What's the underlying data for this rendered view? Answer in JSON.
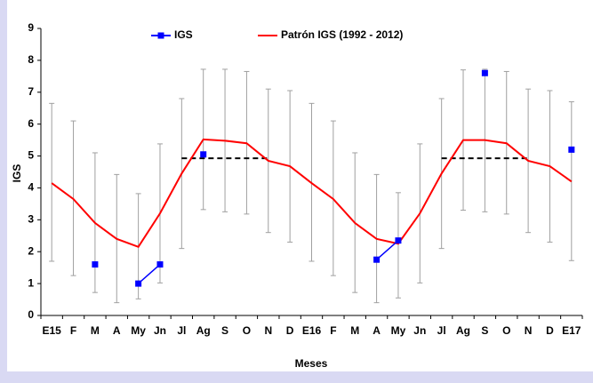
{
  "chart_data": {
    "type": "line",
    "y_label": "IGS",
    "x_label": "Meses",
    "categories": [
      "E15",
      "F",
      "M",
      "A",
      "My",
      "Jn",
      "Jl",
      "Ag",
      "S",
      "O",
      "N",
      "D",
      "E16",
      "F",
      "M",
      "A",
      "My",
      "Jn",
      "Jl",
      "Ag",
      "S",
      "O",
      "N",
      "D",
      "E17"
    ],
    "series": [
      {
        "name": "IGS",
        "color": "#0000ff",
        "marker": "square",
        "values": [
          null,
          null,
          1.6,
          null,
          1.0,
          1.6,
          null,
          5.05,
          null,
          null,
          null,
          null,
          null,
          null,
          null,
          1.75,
          2.35,
          null,
          null,
          null,
          7.6,
          null,
          null,
          null,
          5.2
        ]
      },
      {
        "name": "Patrón IGS (1992 - 2012)",
        "color": "#ff0000",
        "marker": "none",
        "values": [
          4.15,
          3.65,
          2.9,
          2.4,
          2.15,
          3.2,
          4.45,
          5.52,
          5.48,
          5.4,
          4.85,
          4.68,
          4.15,
          3.65,
          2.9,
          2.4,
          2.25,
          3.2,
          4.45,
          5.5,
          5.5,
          5.4,
          4.85,
          4.68,
          4.2
        ]
      }
    ],
    "high": [
      6.65,
      6.1,
      5.1,
      4.42,
      3.82,
      5.38,
      6.8,
      7.72,
      7.72,
      7.65,
      7.1,
      7.05,
      6.65,
      6.1,
      5.1,
      4.42,
      3.85,
      5.38,
      6.8,
      7.7,
      7.72,
      7.65,
      7.1,
      7.05,
      6.7
    ],
    "low": [
      1.7,
      1.25,
      0.72,
      0.4,
      0.52,
      1.02,
      2.1,
      3.32,
      3.25,
      3.18,
      2.6,
      2.3,
      1.7,
      1.25,
      0.72,
      0.4,
      0.55,
      1.02,
      2.1,
      3.3,
      3.25,
      3.18,
      2.6,
      2.3,
      1.72
    ],
    "error_color": "#a0a0a0",
    "reference_lines": [
      {
        "value": 4.93,
        "start": 6,
        "end": 10,
        "color": "#000000"
      },
      {
        "value": 4.93,
        "start": 18,
        "end": 22,
        "color": "#000000"
      }
    ],
    "ylim": [
      0,
      9
    ],
    "yticks": [
      0,
      1,
      2,
      3,
      4,
      5,
      6,
      7,
      8,
      9
    ],
    "legend": "top"
  }
}
